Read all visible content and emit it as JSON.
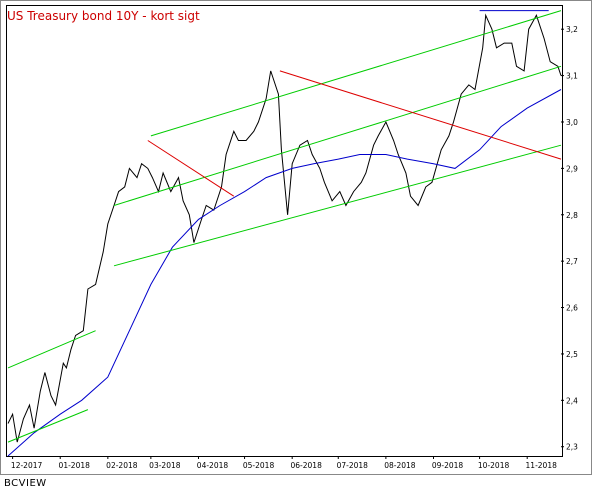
{
  "footer": "BCVIEW",
  "chart_data": {
    "type": "line",
    "title": "US Treasury bond 10Y - kort sigt",
    "xlabel": "",
    "ylabel": "",
    "x_ticks": [
      "12-2017",
      "01-2018",
      "02-2018",
      "03-2018",
      "04-2018",
      "05-2018",
      "06-2018",
      "07-2018",
      "08-2018",
      "09-2018",
      "10-2018",
      "11-2018"
    ],
    "y_ticks": [
      "2,3",
      "2,4",
      "2,5",
      "2,6",
      "2,7",
      "2,8",
      "2,9",
      "3,0",
      "3,1",
      "3,2"
    ],
    "ylim": [
      2.28,
      3.25
    ],
    "xlim": [
      "2017-11-28",
      "2018-11-23"
    ],
    "grid": false,
    "axis_position": "right",
    "colors": {
      "price": "#000000",
      "moving_average": "#0000cc",
      "trend_up": "#00cc00",
      "trend_down": "#dd0000",
      "resistance": "#0000cc",
      "title": "#cc0000"
    },
    "series": [
      {
        "key": "price",
        "x": [
          "2017-11-28",
          "2017-12-01",
          "2017-12-04",
          "2017-12-08",
          "2017-12-12",
          "2017-12-15",
          "2017-12-19",
          "2017-12-22",
          "2017-12-26",
          "2017-12-29",
          "2018-01-03",
          "2018-01-05",
          "2018-01-08",
          "2018-01-11",
          "2018-01-16",
          "2018-01-19",
          "2018-01-24",
          "2018-01-29",
          "2018-02-01",
          "2018-02-05",
          "2018-02-08",
          "2018-02-12",
          "2018-02-15",
          "2018-02-20",
          "2018-02-23",
          "2018-02-27",
          "2018-03-02",
          "2018-03-06",
          "2018-03-09",
          "2018-03-14",
          "2018-03-19",
          "2018-03-22",
          "2018-03-26",
          "2018-03-29",
          "2018-04-03",
          "2018-04-06",
          "2018-04-11",
          "2018-04-16",
          "2018-04-19",
          "2018-04-24",
          "2018-04-27",
          "2018-05-02",
          "2018-05-07",
          "2018-05-10",
          "2018-05-15",
          "2018-05-18",
          "2018-05-23",
          "2018-05-25",
          "2018-05-29",
          "2018-06-01",
          "2018-06-06",
          "2018-06-11",
          "2018-06-14",
          "2018-06-19",
          "2018-06-22",
          "2018-06-27",
          "2018-07-02",
          "2018-07-06",
          "2018-07-11",
          "2018-07-16",
          "2018-07-19",
          "2018-07-24",
          "2018-07-27",
          "2018-08-01",
          "2018-08-06",
          "2018-08-09",
          "2018-08-14",
          "2018-08-17",
          "2018-08-22",
          "2018-08-27",
          "2018-08-31",
          "2018-09-06",
          "2018-09-11",
          "2018-09-14",
          "2018-09-19",
          "2018-09-24",
          "2018-09-28",
          "2018-10-03",
          "2018-10-05",
          "2018-10-09",
          "2018-10-12",
          "2018-10-17",
          "2018-10-22",
          "2018-10-25",
          "2018-10-30",
          "2018-11-02",
          "2018-11-07",
          "2018-11-12",
          "2018-11-16",
          "2018-11-21",
          "2018-11-23"
        ],
        "y": [
          2.35,
          2.37,
          2.31,
          2.36,
          2.39,
          2.34,
          2.42,
          2.46,
          2.41,
          2.39,
          2.48,
          2.47,
          2.51,
          2.54,
          2.55,
          2.64,
          2.65,
          2.72,
          2.78,
          2.82,
          2.85,
          2.86,
          2.9,
          2.88,
          2.91,
          2.9,
          2.88,
          2.85,
          2.89,
          2.85,
          2.88,
          2.83,
          2.8,
          2.74,
          2.79,
          2.82,
          2.81,
          2.86,
          2.93,
          2.98,
          2.96,
          2.96,
          2.98,
          3.0,
          3.05,
          3.11,
          3.06,
          2.94,
          2.8,
          2.91,
          2.95,
          2.96,
          2.93,
          2.9,
          2.87,
          2.83,
          2.85,
          2.82,
          2.85,
          2.87,
          2.89,
          2.95,
          2.97,
          3.0,
          2.96,
          2.93,
          2.89,
          2.84,
          2.82,
          2.86,
          2.87,
          2.94,
          2.97,
          3.0,
          3.06,
          3.08,
          3.07,
          3.16,
          3.23,
          3.2,
          3.16,
          3.17,
          3.17,
          3.12,
          3.11,
          3.2,
          3.23,
          3.18,
          3.13,
          3.12,
          3.1
        ]
      },
      {
        "key": "moving_average",
        "x": [
          "2017-11-28",
          "2017-12-15",
          "2018-01-01",
          "2018-01-15",
          "2018-02-01",
          "2018-02-15",
          "2018-03-01",
          "2018-03-15",
          "2018-04-01",
          "2018-04-15",
          "2018-05-01",
          "2018-05-15",
          "2018-06-01",
          "2018-06-15",
          "2018-07-01",
          "2018-07-15",
          "2018-08-01",
          "2018-08-15",
          "2018-09-01",
          "2018-09-15",
          "2018-10-01",
          "2018-10-15",
          "2018-11-01",
          "2018-11-23"
        ],
        "y": [
          2.28,
          2.33,
          2.37,
          2.4,
          2.45,
          2.55,
          2.65,
          2.73,
          2.79,
          2.82,
          2.85,
          2.88,
          2.9,
          2.91,
          2.92,
          2.93,
          2.93,
          2.92,
          2.91,
          2.9,
          2.94,
          2.99,
          3.03,
          3.07
        ]
      }
    ],
    "trendlines": [
      {
        "key": "trend_up",
        "x": [
          "2017-11-28",
          "2018-01-19"
        ],
        "y": [
          2.31,
          2.38
        ]
      },
      {
        "key": "trend_up",
        "x": [
          "2017-11-28",
          "2018-01-24"
        ],
        "y": [
          2.47,
          2.55
        ]
      },
      {
        "key": "trend_up",
        "x": [
          "2018-03-01",
          "2018-11-23"
        ],
        "y": [
          2.97,
          3.24
        ]
      },
      {
        "key": "trend_up",
        "x": [
          "2018-02-05",
          "2018-11-23"
        ],
        "y": [
          2.82,
          3.12
        ]
      },
      {
        "key": "trend_up",
        "x": [
          "2018-02-05",
          "2018-11-23"
        ],
        "y": [
          2.69,
          2.95
        ]
      },
      {
        "key": "trend_down",
        "x": [
          "2018-02-27",
          "2018-04-24"
        ],
        "y": [
          2.96,
          2.84
        ]
      },
      {
        "key": "trend_down",
        "x": [
          "2018-05-24",
          "2018-11-23"
        ],
        "y": [
          3.11,
          2.92
        ]
      },
      {
        "key": "resistance",
        "x": [
          "2018-10-01",
          "2018-11-15"
        ],
        "y": [
          3.24,
          3.24
        ]
      }
    ]
  }
}
